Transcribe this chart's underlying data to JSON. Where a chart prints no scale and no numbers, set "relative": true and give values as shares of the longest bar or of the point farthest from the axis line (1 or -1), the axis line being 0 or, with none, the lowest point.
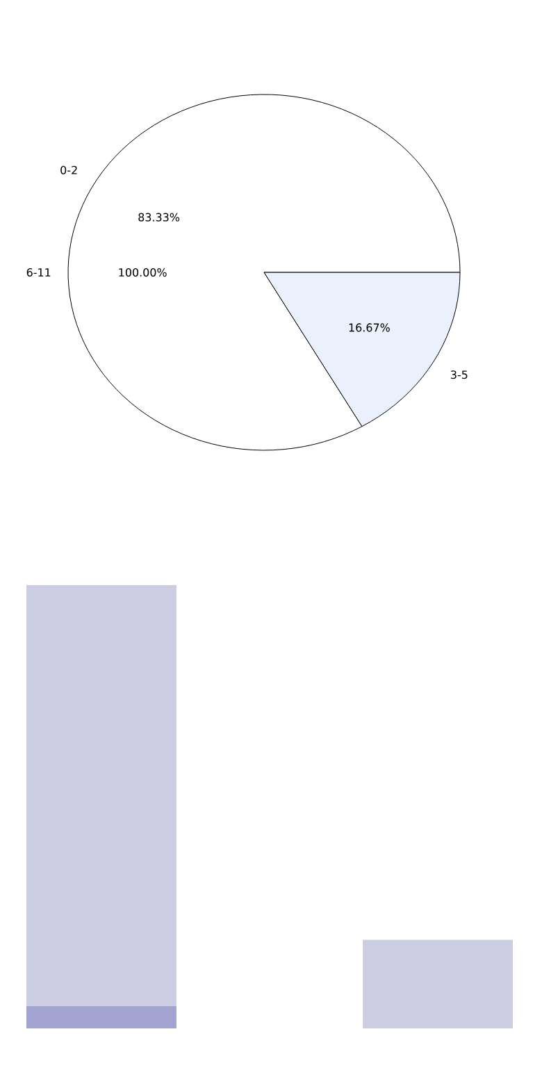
{
  "chart_data": [
    {
      "type": "pie",
      "categories": [
        "0-2",
        "3-5",
        "6-11"
      ],
      "values": [
        83.33,
        16.67,
        0
      ],
      "value_labels": [
        "83.33%",
        "16.67%",
        null
      ],
      "annotations": [
        "100.00%"
      ],
      "colors": [
        "#ffffff",
        "#eaf0fc",
        "#ffffff"
      ]
    },
    {
      "type": "bar",
      "stacked": true,
      "relative": true,
      "categories": [
        null,
        null
      ],
      "series": [
        {
          "color": "#a3a3d1",
          "values": [
            0.05,
            null
          ]
        },
        {
          "color": "#cccce3",
          "values": [
            0.95,
            0.2
          ]
        }
      ]
    }
  ]
}
